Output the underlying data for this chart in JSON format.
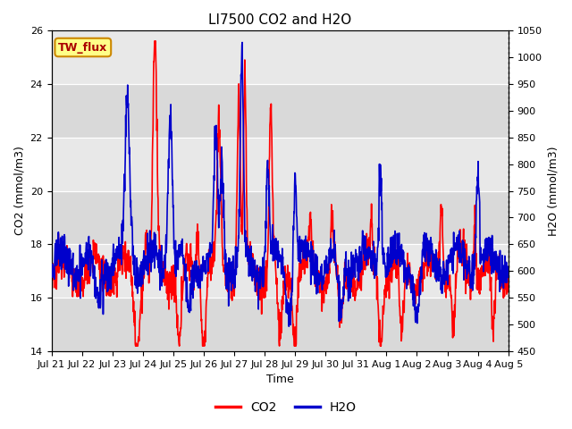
{
  "title": "LI7500 CO2 and H2O",
  "xlabel": "Time",
  "ylabel_left": "CO2 (mmol/m3)",
  "ylabel_right": "H2O (mmol/m3)",
  "ylim_left": [
    14,
    26
  ],
  "ylim_right": [
    450,
    1050
  ],
  "yticks_left": [
    14,
    16,
    18,
    20,
    22,
    24,
    26
  ],
  "yticks_right": [
    450,
    500,
    550,
    600,
    650,
    700,
    750,
    800,
    850,
    900,
    950,
    1000,
    1050
  ],
  "xtick_labels": [
    "Jul 21",
    "Jul 22",
    "Jul 23",
    "Jul 24",
    "Jul 25",
    "Jul 26",
    "Jul 27",
    "Jul 28",
    "Jul 29",
    "Jul 30",
    "Jul 31",
    "Aug 1",
    "Aug 2",
    "Aug 3",
    "Aug 4",
    "Aug 5"
  ],
  "co2_color": "#ff0000",
  "h2o_color": "#0000cc",
  "plot_bg_color": "#e8e8e8",
  "band_color": "#d0d0d0",
  "annotation_text": "TW_flux",
  "annotation_bg": "#ffff88",
  "annotation_border": "#cc8800",
  "annotation_fg": "#aa0000",
  "legend_co2": "CO2",
  "legend_h2o": "H2O",
  "line_width": 1.2,
  "title_fontsize": 11,
  "axis_fontsize": 9,
  "tick_fontsize": 8
}
